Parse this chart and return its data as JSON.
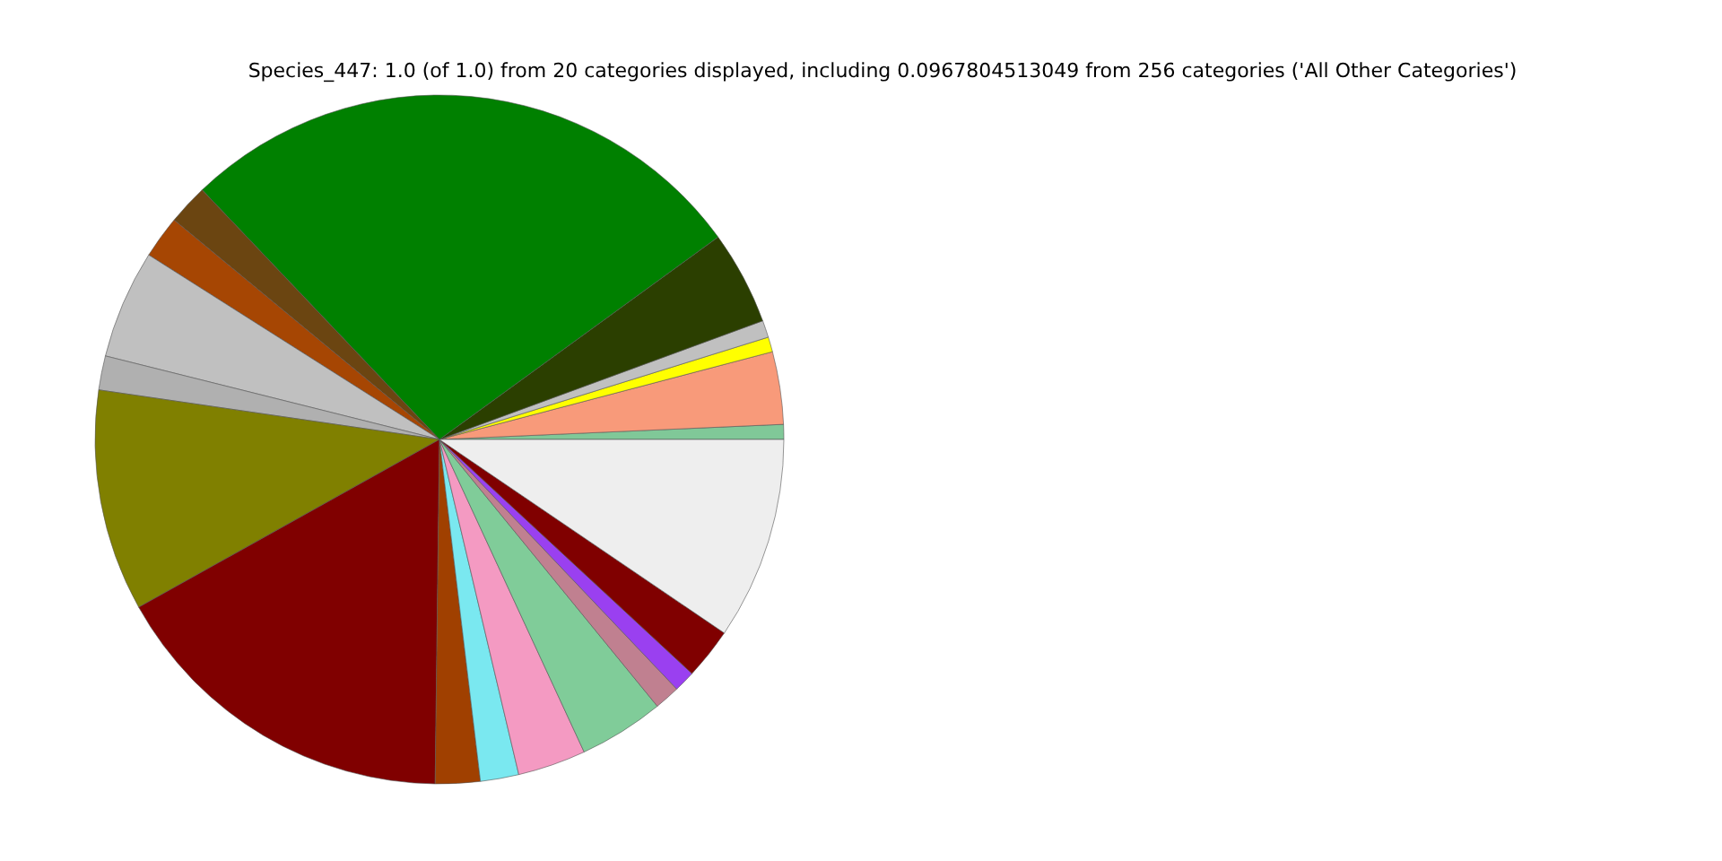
{
  "chart_data": {
    "type": "pie",
    "title": "Species_447: 1.0 (of 1.0) from 20 categories displayed, including 0.0967804513049 from 256 categories ('All Other Categories')",
    "categories": [
      null,
      null,
      null,
      null,
      null,
      null,
      null,
      null,
      null,
      null,
      null,
      null,
      null,
      null,
      null,
      null,
      null,
      null,
      null,
      null
    ],
    "values": [
      0.7,
      3.4,
      0.7,
      0.8,
      4.4,
      27.1,
      1.9,
      2.0,
      5.1,
      1.6,
      10.4,
      16.7,
      2.1,
      1.8,
      3.2,
      4.0,
      1.2,
      1.0,
      2.4,
      9.5
    ],
    "colors": [
      "#80c898",
      "#f89a7a",
      "#ffff00",
      "#c0c0c0",
      "#2b3f00",
      "#008000",
      "#6b4511",
      "#a64603",
      "#c0c0c0",
      "#b0b0b0",
      "#808000",
      "#800000",
      "#a04000",
      "#7ae8f0",
      "#f49ac2",
      "#80cc99",
      "#c08090",
      "#9a40f0",
      "#800000",
      "#eeeeee"
    ],
    "legend": false
  }
}
